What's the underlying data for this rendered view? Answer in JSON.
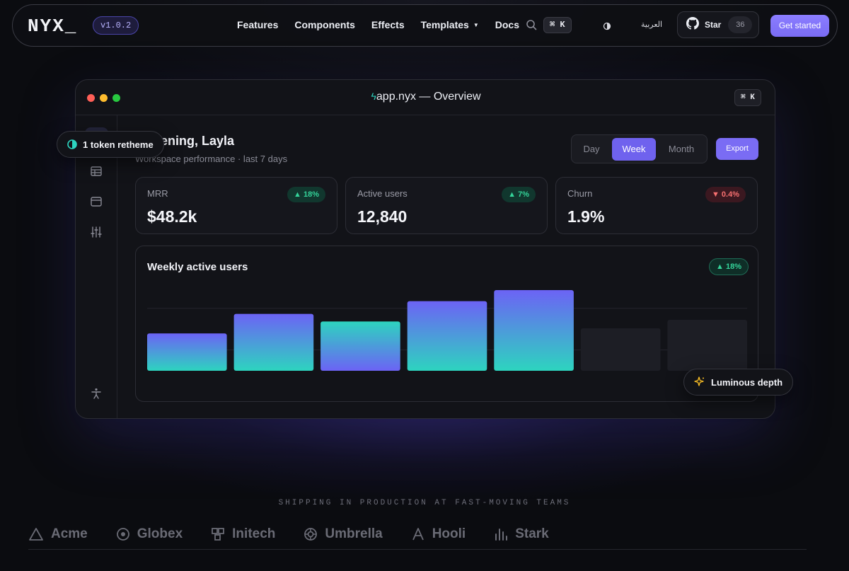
{
  "nav": {
    "logo": "NYX_",
    "version": "v1.0.2",
    "links": [
      "Features",
      "Components",
      "Effects",
      "Templates",
      "Docs"
    ],
    "search_shortcut": "⌘ K",
    "language": "العربية",
    "github": {
      "label": "Star",
      "count": "36"
    },
    "cta": "Get started"
  },
  "window": {
    "title": "app.nyx — Overview",
    "shortcut": "⌘ K",
    "greeting": "d evening, Layla",
    "subtitle": "Workspace performance · last 7 days",
    "ranges": [
      "Day",
      "Week",
      "Month"
    ],
    "active_range": "Week",
    "export": "Export",
    "kpis": [
      {
        "label": "MRR",
        "value": "$48.2k",
        "delta": "18%",
        "direction": "up"
      },
      {
        "label": "Active users",
        "value": "12,840",
        "delta": "7%",
        "direction": "up"
      },
      {
        "label": "Churn",
        "value": "1.9%",
        "delta": "0.4%",
        "direction": "down"
      }
    ]
  },
  "chart_data": {
    "type": "bar",
    "title": "Weekly active users",
    "badge": "18%",
    "categories": [
      "",
      "",
      "",
      "",
      "",
      "",
      ""
    ],
    "values": [
      44,
      67,
      58,
      82,
      95,
      50,
      60
    ],
    "ylim": [
      0,
      100
    ],
    "grid": true,
    "colors": {
      "gradient_a": [
        "#6c63f5",
        "#2dd4bf"
      ],
      "gradient_b": [
        "#2dd4bf",
        "#6c63f5"
      ],
      "muted": "#1d1e25"
    },
    "bar_styles": [
      "a",
      "a",
      "b",
      "a",
      "a",
      "muted",
      "muted"
    ]
  },
  "pills": {
    "retheme": "1 token retheme",
    "depth": "Luminous depth"
  },
  "footer": {
    "tagline": "SHIPPING IN PRODUCTION AT FAST-MOVING TEAMS",
    "brands": [
      {
        "name": "Acme",
        "icon": "triangle-icon"
      },
      {
        "name": "Globex",
        "icon": "target-icon"
      },
      {
        "name": "Initech",
        "icon": "blocks-icon"
      },
      {
        "name": "Umbrella",
        "icon": "aperture-icon"
      },
      {
        "name": "Hooli",
        "icon": "letter-a-icon"
      },
      {
        "name": "Stark",
        "icon": "bars-icon"
      }
    ]
  }
}
